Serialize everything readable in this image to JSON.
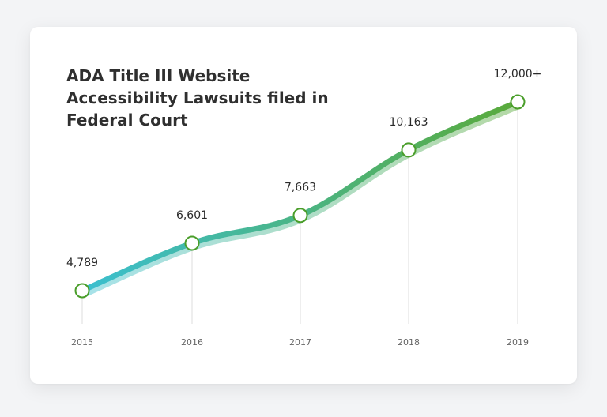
{
  "chart_data": {
    "type": "line",
    "title": "ADA Title III Website Accessibility Lawsuits filed in Federal Court",
    "categories": [
      "2015",
      "2016",
      "2017",
      "2018",
      "2019"
    ],
    "series": [
      {
        "values": [
          4789,
          6601,
          7663,
          10163,
          12000
        ],
        "labels": [
          "4,789",
          "6,601",
          "7,663",
          "10,163",
          "12,000+"
        ]
      }
    ],
    "xlabel": "",
    "ylabel": "",
    "ylim": [
      2000,
      13000
    ],
    "grid": false,
    "legend": "none",
    "gradient_colors": [
      "#3bbfd0",
      "#5aaa3a"
    ],
    "marker_stroke_color": "#4a9e2a"
  }
}
